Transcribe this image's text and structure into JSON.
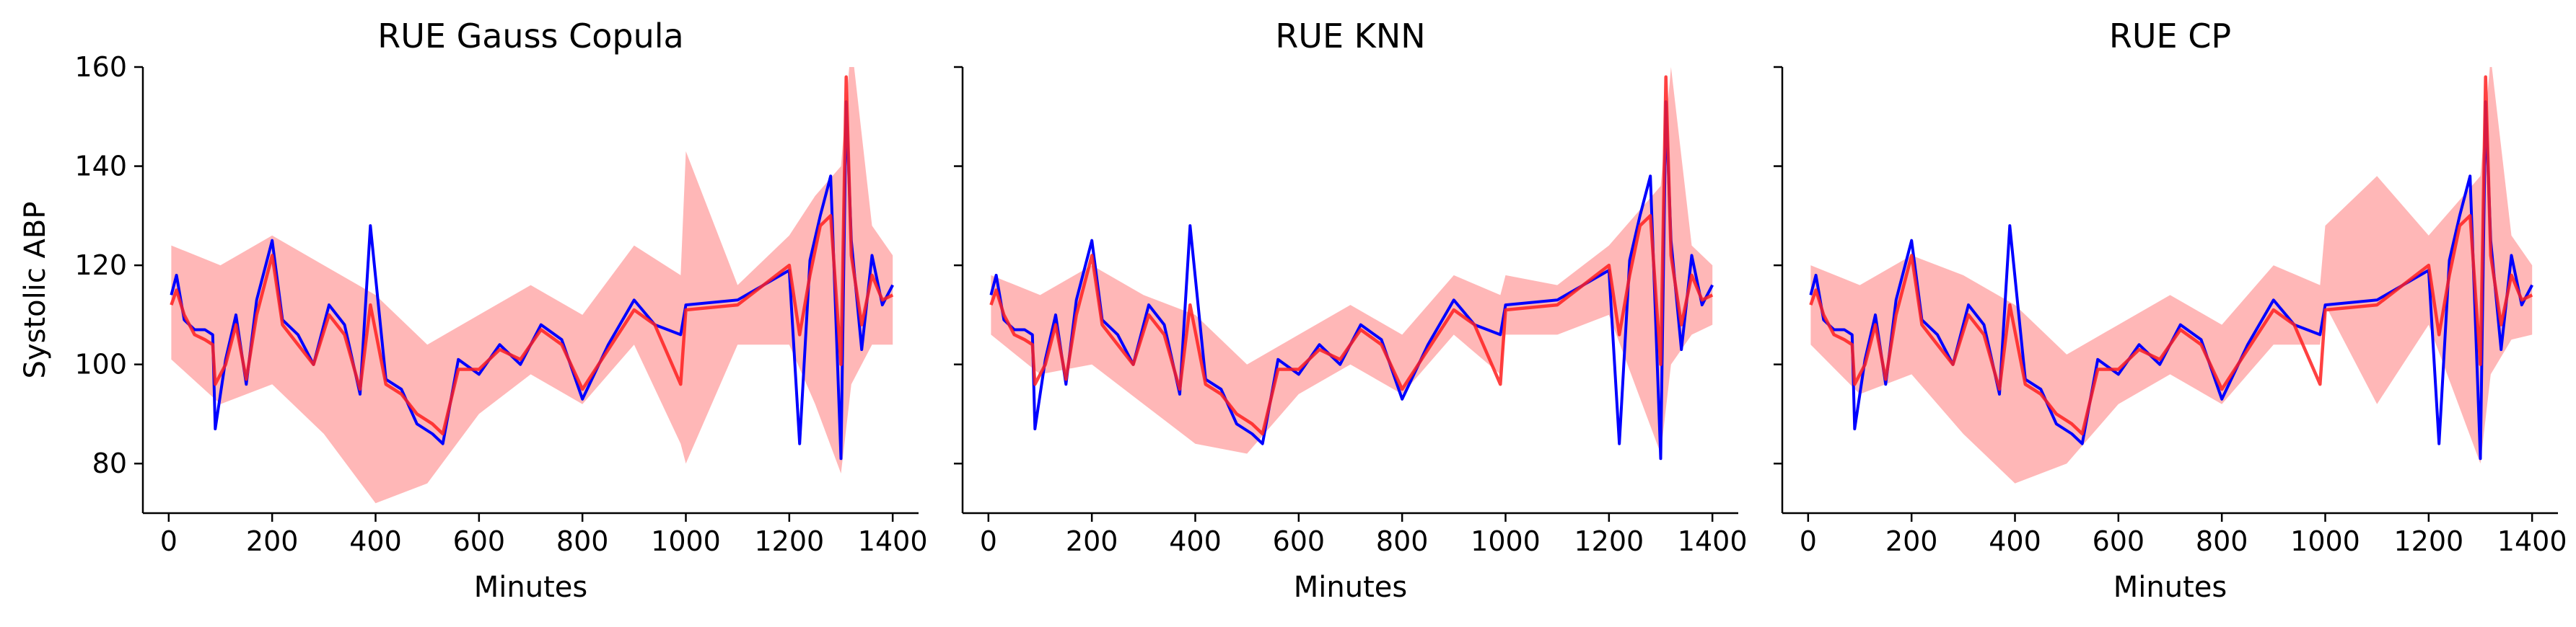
{
  "chart_data": {
    "type": "line",
    "ylabel": "Systolic ABP",
    "ylim": [
      70,
      160
    ],
    "xlim": [
      -50,
      1450
    ],
    "x_ticks": [
      0,
      200,
      400,
      600,
      800,
      1000,
      1200,
      1400
    ],
    "y_ticks": [
      80,
      100,
      120,
      140,
      160
    ],
    "colors": {
      "actual": "#0000ff",
      "predicted": "#ff2020",
      "band": "#ffaaaa"
    },
    "panels": [
      {
        "title": "RUE Gauss Copula",
        "xlabel": "Minutes",
        "series": [
          {
            "role": "actual",
            "x": [
              5,
              15,
              30,
              50,
              70,
              85,
              90,
              110,
              130,
              150,
              170,
              200,
              220,
              250,
              280,
              310,
              340,
              370,
              390,
              420,
              450,
              480,
              510,
              530,
              560,
              600,
              640,
              680,
              720,
              760,
              800,
              850,
              900,
              940,
              990,
              1000,
              1100,
              1200,
              1220,
              1240,
              1260,
              1280,
              1300,
              1310,
              1320,
              1340,
              1360,
              1380,
              1400
            ],
            "y": [
              114,
              118,
              109,
              107,
              107,
              106,
              87,
              101,
              110,
              96,
              113,
              125,
              109,
              106,
              100,
              112,
              108,
              94,
              128,
              97,
              95,
              88,
              86,
              84,
              101,
              98,
              104,
              100,
              108,
              105,
              93,
              104,
              113,
              108,
              106,
              112,
              113,
              119,
              84,
              121,
              130,
              138,
              81,
              153,
              125,
              103,
              122,
              112,
              116
            ]
          },
          {
            "role": "predicted",
            "x": [
              5,
              15,
              30,
              50,
              70,
              85,
              90,
              110,
              130,
              150,
              170,
              200,
              220,
              250,
              280,
              310,
              340,
              370,
              390,
              420,
              450,
              480,
              510,
              530,
              560,
              600,
              640,
              680,
              720,
              760,
              800,
              850,
              900,
              940,
              990,
              1000,
              1100,
              1200,
              1220,
              1240,
              1260,
              1280,
              1300,
              1310,
              1320,
              1340,
              1360,
              1380,
              1400
            ],
            "y": [
              112,
              115,
              110,
              106,
              105,
              104,
              96,
              100,
              108,
              97,
              110,
              122,
              108,
              104,
              100,
              110,
              106,
              95,
              112,
              96,
              94,
              90,
              88,
              86,
              99,
              99,
              103,
              101,
              107,
              104,
              95,
              103,
              111,
              108,
              96,
              111,
              112,
              120,
              106,
              118,
              128,
              130,
              100,
              158,
              122,
              108,
              118,
              113,
              114
            ]
          },
          {
            "role": "band_upper",
            "x": [
              5,
              100,
              200,
              300,
              400,
              500,
              600,
              700,
              800,
              900,
              990,
              1000,
              1100,
              1200,
              1250,
              1300,
              1320,
              1360,
              1400
            ],
            "y": [
              124,
              120,
              126,
              120,
              114,
              104,
              110,
              116,
              110,
              124,
              118,
              143,
              116,
              126,
              134,
              140,
              165,
              128,
              122
            ]
          },
          {
            "role": "band_lower",
            "x": [
              5,
              100,
              200,
              300,
              400,
              500,
              600,
              700,
              800,
              900,
              990,
              1000,
              1100,
              1200,
              1250,
              1300,
              1320,
              1360,
              1400
            ],
            "y": [
              101,
              92,
              96,
              86,
              72,
              76,
              90,
              98,
              92,
              104,
              84,
              80,
              104,
              104,
              92,
              78,
              96,
              104,
              104
            ]
          }
        ]
      },
      {
        "title": "RUE KNN",
        "xlabel": "Minutes",
        "series": [
          {
            "role": "actual",
            "x": [
              5,
              15,
              30,
              50,
              70,
              85,
              90,
              110,
              130,
              150,
              170,
              200,
              220,
              250,
              280,
              310,
              340,
              370,
              390,
              420,
              450,
              480,
              510,
              530,
              560,
              600,
              640,
              680,
              720,
              760,
              800,
              850,
              900,
              940,
              990,
              1000,
              1100,
              1200,
              1220,
              1240,
              1260,
              1280,
              1300,
              1310,
              1320,
              1340,
              1360,
              1380,
              1400
            ],
            "y": [
              114,
              118,
              109,
              107,
              107,
              106,
              87,
              101,
              110,
              96,
              113,
              125,
              109,
              106,
              100,
              112,
              108,
              94,
              128,
              97,
              95,
              88,
              86,
              84,
              101,
              98,
              104,
              100,
              108,
              105,
              93,
              104,
              113,
              108,
              106,
              112,
              113,
              119,
              84,
              121,
              130,
              138,
              81,
              153,
              125,
              103,
              122,
              112,
              116
            ]
          },
          {
            "role": "predicted",
            "x": [
              5,
              15,
              30,
              50,
              70,
              85,
              90,
              110,
              130,
              150,
              170,
              200,
              220,
              250,
              280,
              310,
              340,
              370,
              390,
              420,
              450,
              480,
              510,
              530,
              560,
              600,
              640,
              680,
              720,
              760,
              800,
              850,
              900,
              940,
              990,
              1000,
              1100,
              1200,
              1220,
              1240,
              1260,
              1280,
              1300,
              1310,
              1320,
              1340,
              1360,
              1380,
              1400
            ],
            "y": [
              112,
              115,
              110,
              106,
              105,
              104,
              96,
              100,
              108,
              97,
              110,
              122,
              108,
              104,
              100,
              110,
              106,
              95,
              112,
              96,
              94,
              90,
              88,
              86,
              99,
              99,
              103,
              101,
              107,
              104,
              95,
              103,
              111,
              108,
              96,
              111,
              112,
              120,
              106,
              118,
              128,
              130,
              100,
              158,
              122,
              108,
              118,
              113,
              114
            ]
          },
          {
            "role": "band_upper",
            "x": [
              5,
              100,
              200,
              300,
              400,
              500,
              600,
              700,
              800,
              900,
              990,
              1000,
              1100,
              1200,
              1250,
              1300,
              1320,
              1360,
              1400
            ],
            "y": [
              118,
              114,
              120,
              114,
              110,
              100,
              106,
              112,
              106,
              118,
              114,
              118,
              116,
              124,
              130,
              136,
              160,
              124,
              120
            ]
          },
          {
            "role": "band_lower",
            "x": [
              5,
              100,
              200,
              300,
              400,
              500,
              600,
              700,
              800,
              900,
              990,
              1000,
              1100,
              1200,
              1250,
              1300,
              1320,
              1360,
              1400
            ],
            "y": [
              106,
              98,
              100,
              92,
              84,
              82,
              94,
              100,
              94,
              106,
              98,
              106,
              106,
              110,
              96,
              82,
              100,
              106,
              108
            ]
          }
        ]
      },
      {
        "title": "RUE CP",
        "xlabel": "Minutes",
        "series": [
          {
            "role": "actual",
            "x": [
              5,
              15,
              30,
              50,
              70,
              85,
              90,
              110,
              130,
              150,
              170,
              200,
              220,
              250,
              280,
              310,
              340,
              370,
              390,
              420,
              450,
              480,
              510,
              530,
              560,
              600,
              640,
              680,
              720,
              760,
              800,
              850,
              900,
              940,
              990,
              1000,
              1100,
              1200,
              1220,
              1240,
              1260,
              1280,
              1300,
              1310,
              1320,
              1340,
              1360,
              1380,
              1400
            ],
            "y": [
              114,
              118,
              109,
              107,
              107,
              106,
              87,
              101,
              110,
              96,
              113,
              125,
              109,
              106,
              100,
              112,
              108,
              94,
              128,
              97,
              95,
              88,
              86,
              84,
              101,
              98,
              104,
              100,
              108,
              105,
              93,
              104,
              113,
              108,
              106,
              112,
              113,
              119,
              84,
              121,
              130,
              138,
              81,
              153,
              125,
              103,
              122,
              112,
              116
            ]
          },
          {
            "role": "predicted",
            "x": [
              5,
              15,
              30,
              50,
              70,
              85,
              90,
              110,
              130,
              150,
              170,
              200,
              220,
              250,
              280,
              310,
              340,
              370,
              390,
              420,
              450,
              480,
              510,
              530,
              560,
              600,
              640,
              680,
              720,
              760,
              800,
              850,
              900,
              940,
              990,
              1000,
              1100,
              1200,
              1220,
              1240,
              1260,
              1280,
              1300,
              1310,
              1320,
              1340,
              1360,
              1380,
              1400
            ],
            "y": [
              112,
              115,
              110,
              106,
              105,
              104,
              96,
              100,
              108,
              97,
              110,
              122,
              108,
              104,
              100,
              110,
              106,
              95,
              112,
              96,
              94,
              90,
              88,
              86,
              99,
              99,
              103,
              101,
              107,
              104,
              95,
              103,
              111,
              108,
              96,
              111,
              112,
              120,
              106,
              118,
              128,
              130,
              100,
              158,
              122,
              108,
              118,
              113,
              114
            ]
          },
          {
            "role": "band_upper",
            "x": [
              5,
              100,
              200,
              300,
              400,
              500,
              600,
              700,
              800,
              900,
              990,
              1000,
              1100,
              1200,
              1250,
              1300,
              1320,
              1360,
              1400
            ],
            "y": [
              120,
              116,
              122,
              118,
              112,
              102,
              108,
              114,
              108,
              120,
              116,
              128,
              138,
              126,
              132,
              138,
              162,
              126,
              120
            ]
          },
          {
            "role": "band_lower",
            "x": [
              5,
              100,
              200,
              300,
              400,
              500,
              600,
              700,
              800,
              900,
              990,
              1000,
              1100,
              1200,
              1250,
              1300,
              1320,
              1360,
              1400
            ],
            "y": [
              104,
              94,
              98,
              86,
              76,
              80,
              92,
              98,
              92,
              104,
              104,
              112,
              92,
              108,
              94,
              80,
              98,
              105,
              106
            ]
          }
        ]
      }
    ]
  }
}
